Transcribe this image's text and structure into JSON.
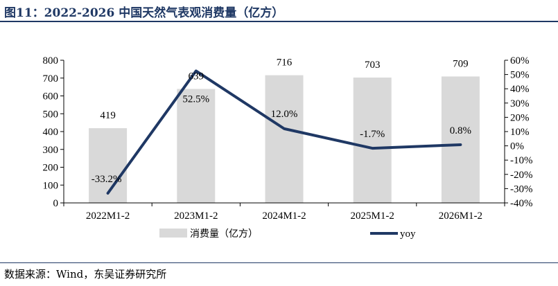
{
  "header": {
    "title": "图11：2022-2026 中国天然气表观消费量（亿方）"
  },
  "footer": {
    "source": "数据来源：Wind，东吴证券研究所"
  },
  "colors": {
    "bar": "#d9d9d9",
    "line": "#1f3864",
    "title": "#1f3864"
  },
  "chart_data": {
    "type": "bar",
    "categories": [
      "2022M1-2",
      "2023M1-2",
      "2024M1-2",
      "2025M1-2",
      "2026M1-2"
    ],
    "series": [
      {
        "name": "消费量（亿方）",
        "type": "bar",
        "axis": "left",
        "values": [
          419,
          639,
          716,
          703,
          709
        ],
        "labels": [
          "419",
          "639",
          "716",
          "703",
          "709"
        ]
      },
      {
        "name": "yoy",
        "type": "line",
        "axis": "right",
        "values": [
          -33.2,
          52.5,
          12.0,
          -1.7,
          0.8
        ],
        "labels": [
          "-33.2%",
          "52.5%",
          "12.0%",
          "-1.7%",
          "0.8%"
        ]
      }
    ],
    "y_left": {
      "ylim": [
        0,
        800
      ],
      "ticks": [
        "0",
        "100",
        "200",
        "300",
        "400",
        "500",
        "600",
        "700",
        "800"
      ]
    },
    "y_right": {
      "ylim": [
        -40,
        60
      ],
      "ticks": [
        "-40%",
        "-30%",
        "-20%",
        "-10%",
        "0%",
        "10%",
        "20%",
        "30%",
        "40%",
        "50%",
        "60%"
      ]
    },
    "legend": "bottom",
    "grid": false
  }
}
